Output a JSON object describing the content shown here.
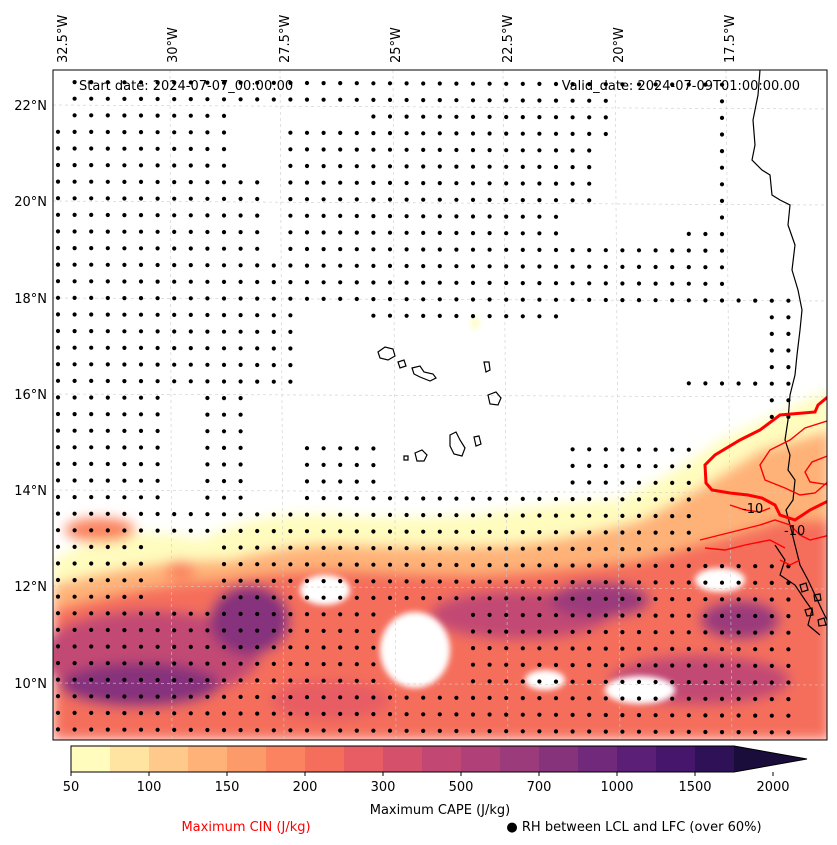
{
  "header": {
    "start_date": "Start date: 2024-07-07_00:00:00",
    "valid_date": "Valid_date: 2024-07-09T01:00:00.00"
  },
  "axes": {
    "longitude_labels": [
      "32.5°W",
      "30°W",
      "27.5°W",
      "25°W",
      "22.5°W",
      "20°W",
      "17.5°W"
    ],
    "latitude_labels": [
      "22°N",
      "20°N",
      "18°N",
      "16°N",
      "14°N",
      "12°N",
      "10°N"
    ]
  },
  "map": {
    "extent": {
      "lon_min": -32.7,
      "lon_max": -15.2,
      "lat_min": 8.9,
      "lat_max": 22.8
    },
    "contour_labels": [
      "-10",
      "-10"
    ],
    "cin_color": "#ff0000",
    "coast_color": "#000000"
  },
  "colorbar": {
    "title": "Maximum CAPE (J/kg)",
    "ticks": [
      "50",
      "100",
      "150",
      "200",
      "300",
      "500",
      "700",
      "1000",
      "1500",
      "2000"
    ],
    "colors": [
      "#fffcbe",
      "#fee3a1",
      "#fec98b",
      "#feb278",
      "#fd9a6a",
      "#fb835f",
      "#f56e5c",
      "#e75d63",
      "#d5506b",
      "#c24873",
      "#af4178",
      "#9b3b7b",
      "#86337c",
      "#712a7b",
      "#5c1f77",
      "#46166c",
      "#2f1157",
      "#1a0d3c"
    ]
  },
  "legend": {
    "cin_label": "Maximum CIN (J/kg)",
    "rh_label": "● RH between LCL and LFC (over 60%)"
  }
}
